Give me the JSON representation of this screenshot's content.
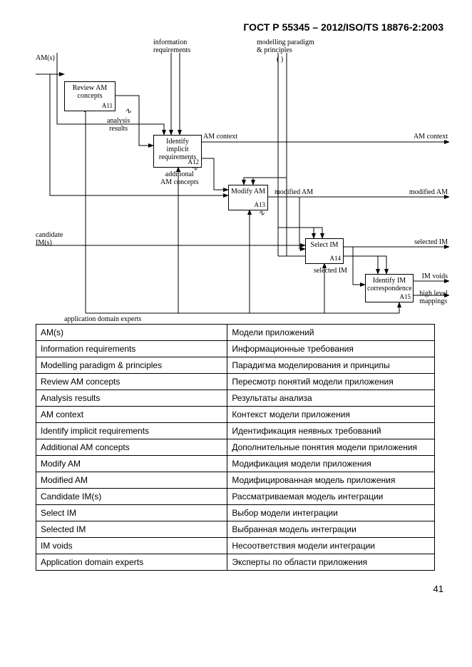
{
  "header": "ГОСТ Р 55345 – 2012/ISO/TS 18876-2:2003",
  "page_number": "41",
  "diagram": {
    "inputs": {
      "am_s": "AM(s)",
      "info_req": "information\nrequirements",
      "paradigm": "modelling paradigm\n& principles",
      "paradigm_sub": "(   )",
      "candidate": "candidate\nIM(s)",
      "app_experts": "application domain experts"
    },
    "boxes": {
      "a11": {
        "label": "Review AM\nconcepts",
        "id": "A11"
      },
      "a12": {
        "label": "Identify\nimplicit\nrequirements",
        "id": "A12"
      },
      "a13": {
        "label": "Modify AM",
        "id": "A13"
      },
      "a14": {
        "label": "Select IM",
        "id": "A14"
      },
      "a15": {
        "label": "Identify IM\ncorrespondence",
        "id": "A15"
      }
    },
    "flows": {
      "analysis_results": "analysis\nresults",
      "am_context": "AM context",
      "additional_am": "additional\nAM concepts",
      "modified_am": "modified AM",
      "selected_im": "selected IM",
      "im_voids": "IM voids",
      "high_level": "high level\nmappings"
    },
    "outputs": {
      "am_context_out": "AM context",
      "modified_am_out": "modified AM",
      "selected_im_out": "selected IM"
    }
  },
  "terms": [
    [
      "AM(s)",
      "Модели приложений"
    ],
    [
      "Information requirements",
      "Информационные требования"
    ],
    [
      "Modelling paradigm & principles",
      "Парадигма моделирования и принципы"
    ],
    [
      "Review AM concepts",
      "Пересмотр понятий модели приложения"
    ],
    [
      "Analysis results",
      "Результаты анализа"
    ],
    [
      "AM context",
      "Контекст модели приложения"
    ],
    [
      "Identify implicit requirements",
      "Идентификация неявных требований"
    ],
    [
      "Additional AM concepts",
      "Дополнительные понятия модели приложения"
    ],
    [
      "Modify AM",
      "Модификация модели приложения"
    ],
    [
      "Modified AM",
      "Модифицированная модель приложения"
    ],
    [
      "Candidate IM(s)",
      "Рассматриваемая модель интеграции"
    ],
    [
      "Select IM",
      "Выбор модели интеграции"
    ],
    [
      "Selected IM",
      "Выбранная модель интеграции"
    ],
    [
      "IM voids",
      "Несоответствия модели интеграции"
    ],
    [
      "Application domain experts",
      "Эксперты по области приложения"
    ]
  ]
}
